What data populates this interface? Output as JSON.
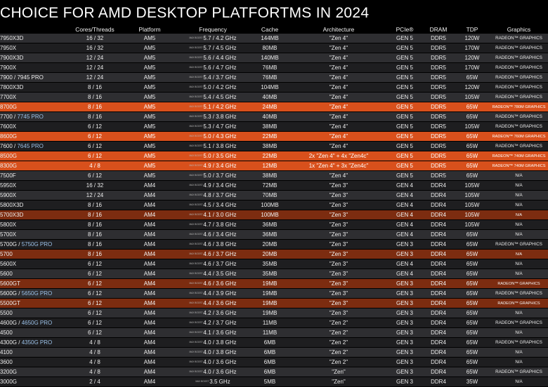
{
  "title": "CHOICE FOR AMD DESKTOP PLATFORTMS IN 2024",
  "headers": [
    "",
    "Cores/Threads",
    "Platform",
    "Frequency",
    "Cache",
    "Architecture",
    "PCIe®",
    "DRAM",
    "TDP",
    "Graphics"
  ],
  "freq_tag": "MAX BOOST",
  "highlight_colors": {
    "bright": "#d8501c",
    "dark": "#7c2c10"
  },
  "rows": [
    {
      "model": "7950X3D",
      "variant": "",
      "cores": "16 / 32",
      "platform": "AM5",
      "freq": "5.7 / 4.2 GHz",
      "cache": "144MB",
      "arch": "\"Zen 4\"",
      "pcie": "GEN 5",
      "dram": "DDR5",
      "tdp": "120W",
      "gfx": "RADEON™ GRAPHICS",
      "hl": ""
    },
    {
      "model": "7950X",
      "variant": "",
      "cores": "16 / 32",
      "platform": "AM5",
      "freq": "5.7 / 4.5 GHz",
      "cache": "80MB",
      "arch": "\"Zen 4\"",
      "pcie": "GEN 5",
      "dram": "DDR5",
      "tdp": "170W",
      "gfx": "RADEON™ GRAPHICS",
      "hl": ""
    },
    {
      "model": "7900X3D",
      "variant": "",
      "cores": "12 / 24",
      "platform": "AM5",
      "freq": "5.6 / 4.4 GHz",
      "cache": "140MB",
      "arch": "\"Zen 4\"",
      "pcie": "GEN 5",
      "dram": "DDR5",
      "tdp": "120W",
      "gfx": "RADEON™ GRAPHICS",
      "hl": ""
    },
    {
      "model": "7900X",
      "variant": "",
      "cores": "12 / 24",
      "platform": "AM5",
      "freq": "5.6 / 4.7 GHz",
      "cache": "76MB",
      "arch": "\"Zen 4\"",
      "pcie": "GEN 5",
      "dram": "DDR5",
      "tdp": "170W",
      "gfx": "RADEON™ GRAPHICS",
      "hl": ""
    },
    {
      "model": "7900 / 7945 PRO",
      "variant": "",
      "cores": "12 / 24",
      "platform": "AM5",
      "freq": "5.4 / 3.7 GHz",
      "cache": "76MB",
      "arch": "\"Zen 4\"",
      "pcie": "GEN 5",
      "dram": "DDR5",
      "tdp": "65W",
      "gfx": "RADEON™ GRAPHICS",
      "hl": ""
    },
    {
      "model": "7800X3D",
      "variant": "",
      "cores": "8 / 16",
      "platform": "AM5",
      "freq": "5.0 / 4.2 GHz",
      "cache": "104MB",
      "arch": "\"Zen 4\"",
      "pcie": "GEN 5",
      "dram": "DDR5",
      "tdp": "120W",
      "gfx": "RADEON™ GRAPHICS",
      "hl": ""
    },
    {
      "model": "7700X",
      "variant": "",
      "cores": "8 / 16",
      "platform": "AM5",
      "freq": "5.4 / 4.5 GHz",
      "cache": "40MB",
      "arch": "\"Zen 4\"",
      "pcie": "GEN 5",
      "dram": "DDR5",
      "tdp": "105W",
      "gfx": "RADEON™ GRAPHICS",
      "hl": ""
    },
    {
      "model": "8700G",
      "variant": "",
      "cores": "8 / 16",
      "platform": "AM5",
      "freq": "5.1 / 4.2 GHz",
      "cache": "24MB",
      "arch": "\"Zen 4\"",
      "pcie": "GEN 5",
      "dram": "DDR5",
      "tdp": "65W",
      "gfx": "RADEON™ 780M GRAPHICS",
      "hl": "bright"
    },
    {
      "model": "7700 / ",
      "variant": "7745 PRO",
      "cores": "8 / 16",
      "platform": "AM5",
      "freq": "5.3 / 3.8 GHz",
      "cache": "40MB",
      "arch": "\"Zen 4\"",
      "pcie": "GEN 5",
      "dram": "DDR5",
      "tdp": "65W",
      "gfx": "RADEON™ GRAPHICS",
      "hl": ""
    },
    {
      "model": "7600X",
      "variant": "",
      "cores": "6 / 12",
      "platform": "AM5",
      "freq": "5.3 / 4.7 GHz",
      "cache": "38MB",
      "arch": "\"Zen 4\"",
      "pcie": "GEN 5",
      "dram": "DDR5",
      "tdp": "105W",
      "gfx": "RADEON™ GRAPHICS",
      "hl": ""
    },
    {
      "model": "8600G",
      "variant": "",
      "cores": "6 / 12",
      "platform": "AM5",
      "freq": "5.0 / 4.3 GHz",
      "cache": "22MB",
      "arch": "\"Zen 4\"",
      "pcie": "GEN 5",
      "dram": "DDR5",
      "tdp": "65W",
      "gfx": "RADEON™ 760M GRAPHICS",
      "hl": "bright"
    },
    {
      "model": "7600 / ",
      "variant": "7645 PRO",
      "cores": "6 / 12",
      "platform": "AM5",
      "freq": "5.1 / 3.8 GHz",
      "cache": "38MB",
      "arch": "\"Zen 4\"",
      "pcie": "GEN 5",
      "dram": "DDR5",
      "tdp": "65W",
      "gfx": "RADEON™ GRAPHICS",
      "hl": ""
    },
    {
      "model": "8500G",
      "variant": "",
      "cores": "6 / 12",
      "platform": "AM5",
      "freq": "5.0 / 3.5 GHz",
      "cache": "22MB",
      "arch": "2x \"Zen 4\" + 4x \"Zen4c\"",
      "pcie": "GEN 5",
      "dram": "DDR5",
      "tdp": "65W",
      "gfx": "RADEON™ 740M GRAPHICS",
      "hl": "bright"
    },
    {
      "model": "8300G",
      "variant": "",
      "cores": "4 / 8",
      "platform": "AM5",
      "freq": "4.9 / 3.4 GHz",
      "cache": "12MB",
      "arch": "1x \"Zen 4\" + 3x \"Zen4c\"",
      "pcie": "GEN 5",
      "dram": "DDR5",
      "tdp": "65W",
      "gfx": "RADEON™ 740M GRAPHICS",
      "hl": "bright"
    },
    {
      "model": "7500F",
      "variant": "",
      "cores": "6 / 12",
      "platform": "AM5",
      "freq": "5.0 / 3.7 GHz",
      "cache": "38MB",
      "arch": "\"Zen 4\"",
      "pcie": "GEN 5",
      "dram": "DDR5",
      "tdp": "65W",
      "gfx": "N/A",
      "hl": ""
    },
    {
      "model": "5950X",
      "variant": "",
      "cores": "16 / 32",
      "platform": "AM4",
      "freq": "4.9 / 3.4 GHz",
      "cache": "72MB",
      "arch": "\"Zen 3\"",
      "pcie": "GEN 4",
      "dram": "DDR4",
      "tdp": "105W",
      "gfx": "N/A",
      "hl": ""
    },
    {
      "model": "5900X",
      "variant": "",
      "cores": "12 / 24",
      "platform": "AM4",
      "freq": "4.8 / 3.7 GHz",
      "cache": "70MB",
      "arch": "\"Zen 3\"",
      "pcie": "GEN 4",
      "dram": "DDR4",
      "tdp": "105W",
      "gfx": "N/A",
      "hl": ""
    },
    {
      "model": "5800X3D",
      "variant": "",
      "cores": "8 / 16",
      "platform": "AM4",
      "freq": "4.5 / 3.4 GHz",
      "cache": "100MB",
      "arch": "\"Zen 3\"",
      "pcie": "GEN 4",
      "dram": "DDR4",
      "tdp": "105W",
      "gfx": "N/A",
      "hl": ""
    },
    {
      "model": "5700X3D",
      "variant": "",
      "cores": "8 / 16",
      "platform": "AM4",
      "freq": "4.1 / 3.0 GHz",
      "cache": "100MB",
      "arch": "\"Zen 3\"",
      "pcie": "GEN 4",
      "dram": "DDR4",
      "tdp": "105W",
      "gfx": "N/A",
      "hl": "dark"
    },
    {
      "model": "5800X",
      "variant": "",
      "cores": "8 / 16",
      "platform": "AM4",
      "freq": "4.7 / 3.8 GHz",
      "cache": "36MB",
      "arch": "\"Zen 3\"",
      "pcie": "GEN 4",
      "dram": "DDR4",
      "tdp": "105W",
      "gfx": "N/A",
      "hl": ""
    },
    {
      "model": "5700X",
      "variant": "",
      "cores": "8 / 16",
      "platform": "AM4",
      "freq": "4.6 / 3.4 GHz",
      "cache": "36MB",
      "arch": "\"Zen 3\"",
      "pcie": "GEN 4",
      "dram": "DDR4",
      "tdp": "65W",
      "gfx": "N/A",
      "hl": ""
    },
    {
      "model": "5700G / ",
      "variant": "5750G PRO",
      "cores": "8 / 16",
      "platform": "AM4",
      "freq": "4.6 / 3.8 GHz",
      "cache": "20MB",
      "arch": "\"Zen 3\"",
      "pcie": "GEN 3",
      "dram": "DDR4",
      "tdp": "65W",
      "gfx": "RADEON™ GRAPHICS",
      "hl": ""
    },
    {
      "model": "5700",
      "variant": "",
      "cores": "8 / 16",
      "platform": "AM4",
      "freq": "4.6 / 3.7 GHz",
      "cache": "20MB",
      "arch": "\"Zen 3\"",
      "pcie": "GEN 3",
      "dram": "DDR4",
      "tdp": "65W",
      "gfx": "N/A",
      "hl": "dark"
    },
    {
      "model": "5600X",
      "variant": "",
      "cores": "6 / 12",
      "platform": "AM4",
      "freq": "4.6 / 3.7 GHz",
      "cache": "35MB",
      "arch": "\"Zen 3\"",
      "pcie": "GEN 4",
      "dram": "DDR4",
      "tdp": "65W",
      "gfx": "N/A",
      "hl": ""
    },
    {
      "model": "5600",
      "variant": "",
      "cores": "6 / 12",
      "platform": "AM4",
      "freq": "4.4 / 3.5 GHz",
      "cache": "35MB",
      "arch": "\"Zen 3\"",
      "pcie": "GEN 4",
      "dram": "DDR4",
      "tdp": "65W",
      "gfx": "N/A",
      "hl": ""
    },
    {
      "model": "5600GT",
      "variant": "",
      "cores": "6 / 12",
      "platform": "AM4",
      "freq": "4.6 / 3.6 GHz",
      "cache": "19MB",
      "arch": "\"Zen 3\"",
      "pcie": "GEN 3",
      "dram": "DDR4",
      "tdp": "65W",
      "gfx": "RADEON™ GRAPHICS",
      "hl": "dark"
    },
    {
      "model": "5600G / ",
      "variant": "5650G PRO",
      "cores": "6 / 12",
      "platform": "AM4",
      "freq": "4.4 / 3.9 GHz",
      "cache": "19MB",
      "arch": "\"Zen 3\"",
      "pcie": "GEN 3",
      "dram": "DDR4",
      "tdp": "65W",
      "gfx": "RADEON™ GRAPHICS",
      "hl": ""
    },
    {
      "model": "5500GT",
      "variant": "",
      "cores": "6 / 12",
      "platform": "AM4",
      "freq": "4.4 / 3.6 GHz",
      "cache": "19MB",
      "arch": "\"Zen 3\"",
      "pcie": "GEN 3",
      "dram": "DDR4",
      "tdp": "65W",
      "gfx": "RADEON™ GRAPHICS",
      "hl": "dark"
    },
    {
      "model": "5500",
      "variant": "",
      "cores": "6 / 12",
      "platform": "AM4",
      "freq": "4.2 / 3.6 GHz",
      "cache": "19MB",
      "arch": "\"Zen 3\"",
      "pcie": "GEN 3",
      "dram": "DDR4",
      "tdp": "65W",
      "gfx": "N/A",
      "hl": ""
    },
    {
      "model": "4600G / ",
      "variant": "4650G PRO",
      "cores": "6 / 12",
      "platform": "AM4",
      "freq": "4.2 / 3.7 GHz",
      "cache": "11MB",
      "arch": "\"Zen 2\"",
      "pcie": "GEN 3",
      "dram": "DDR4",
      "tdp": "65W",
      "gfx": "RADEON™ GRAPHICS",
      "hl": ""
    },
    {
      "model": "4500",
      "variant": "",
      "cores": "6 / 12",
      "platform": "AM4",
      "freq": "4.1 / 3.6 GHz",
      "cache": "11MB",
      "arch": "\"Zen 2\"",
      "pcie": "GEN 3",
      "dram": "DDR4",
      "tdp": "65W",
      "gfx": "N/A",
      "hl": ""
    },
    {
      "model": "4300G / ",
      "variant": "4350G PRO",
      "cores": "4 / 8",
      "platform": "AM4",
      "freq": "4.0 / 3.8 GHz",
      "cache": "6MB",
      "arch": "\"Zen 2\"",
      "pcie": "GEN 3",
      "dram": "DDR4",
      "tdp": "65W",
      "gfx": "RADEON™ GRAPHICS",
      "hl": ""
    },
    {
      "model": "4100",
      "variant": "",
      "cores": "4 / 8",
      "platform": "AM4",
      "freq": "4.0 / 3.8 GHz",
      "cache": "6MB",
      "arch": "\"Zen 2\"",
      "pcie": "GEN 3",
      "dram": "DDR4",
      "tdp": "65W",
      "gfx": "N/A",
      "hl": ""
    },
    {
      "model": "3600",
      "variant": "",
      "cores": "4 / 8",
      "platform": "AM4",
      "freq": "4.0 / 3.6 GHz",
      "cache": "6MB",
      "arch": "\"Zen 2\"",
      "pcie": "GEN 3",
      "dram": "DDR4",
      "tdp": "65W",
      "gfx": "N/A",
      "hl": ""
    },
    {
      "model": "3200G",
      "variant": "",
      "cores": "4 / 8",
      "platform": "AM4",
      "freq": "4.0 / 3.6 GHz",
      "cache": "6MB",
      "arch": "\"Zen\"",
      "pcie": "GEN 3",
      "dram": "DDR4",
      "tdp": "65W",
      "gfx": "RADEON™ GRAPHICS",
      "hl": ""
    },
    {
      "model": "3000G",
      "variant": "",
      "cores": "2 / 4",
      "platform": "AM4",
      "freq": "3.5 GHz",
      "cache": "5MB",
      "arch": "\"Zen\"",
      "pcie": "GEN 3",
      "dram": "DDR4",
      "tdp": "35W",
      "gfx": "N/A",
      "hl": ""
    }
  ]
}
